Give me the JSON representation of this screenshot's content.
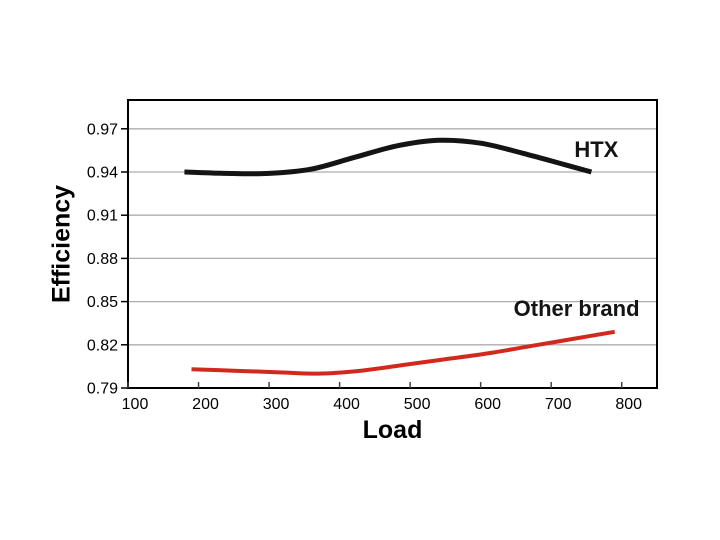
{
  "window": {
    "background": "#ffffff"
  },
  "chart_data": {
    "type": "line",
    "title": "",
    "xlabel": "Load",
    "ylabel": "Efficiency",
    "xlim": [
      100,
      850
    ],
    "ylim": [
      0.79,
      0.99
    ],
    "xticks": [
      100,
      200,
      300,
      400,
      500,
      600,
      700,
      800
    ],
    "yticks": [
      0.79,
      0.82,
      0.85,
      0.88,
      0.91,
      0.94,
      0.97
    ],
    "grid": {
      "horizontal": true,
      "vertical": false,
      "color": "#adadad"
    },
    "axis_color": "#000000",
    "tick_color": "#444444",
    "plot_background": "#ffffff",
    "legend_position": "inline-labels",
    "series": [
      {
        "name": "HTX",
        "color": "#141414",
        "stroke_width": 5,
        "x": [
          180,
          240,
          300,
          360,
          420,
          480,
          540,
          600,
          660,
          720,
          757
        ],
        "y": [
          0.94,
          0.939,
          0.939,
          0.942,
          0.95,
          0.958,
          0.962,
          0.96,
          0.953,
          0.945,
          0.94
        ]
      },
      {
        "name": "Other brand",
        "color": "#d2291e",
        "stroke_width": 4,
        "x": [
          190,
          250,
          310,
          370,
          430,
          490,
          550,
          610,
          670,
          730,
          790
        ],
        "y": [
          0.803,
          0.802,
          0.801,
          0.8,
          0.802,
          0.806,
          0.81,
          0.814,
          0.819,
          0.824,
          0.829
        ]
      }
    ],
    "annotations": [
      {
        "id": "htx",
        "text": "HTX",
        "x": 764,
        "y": 0.955,
        "color": "#141414"
      },
      {
        "id": "other-brand",
        "text": "Other brand",
        "x": 736,
        "y": 0.845,
        "color": "#141414"
      }
    ]
  }
}
